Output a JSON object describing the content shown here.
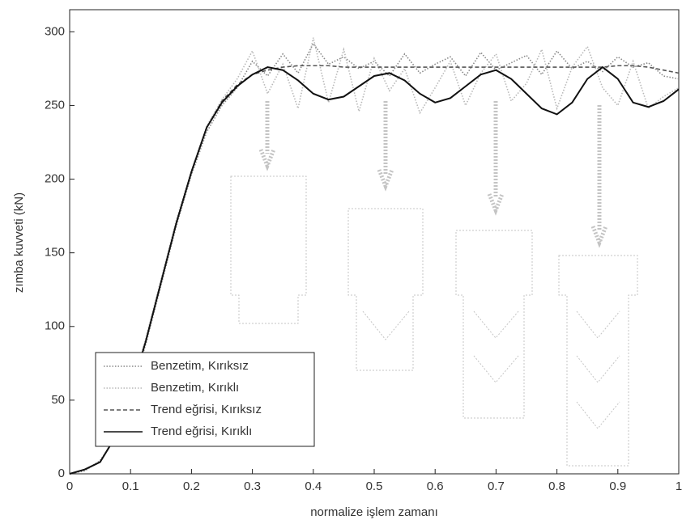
{
  "chart_data": {
    "type": "line",
    "xlabel": "normalize işlem zamanı",
    "ylabel": "zımba kuvveti (kN)",
    "x": [
      0,
      0.025,
      0.05,
      0.075,
      0.1,
      0.125,
      0.15,
      0.175,
      0.2,
      0.225,
      0.25,
      0.275,
      0.3,
      0.325,
      0.35,
      0.375,
      0.4,
      0.425,
      0.45,
      0.475,
      0.5,
      0.525,
      0.55,
      0.575,
      0.6,
      0.625,
      0.65,
      0.675,
      0.7,
      0.725,
      0.75,
      0.775,
      0.8,
      0.825,
      0.85,
      0.875,
      0.9,
      0.925,
      0.95,
      0.975,
      1
    ],
    "series": [
      {
        "name": "Benzetim, Kırıksız",
        "color": "#888888",
        "dash": "dotted",
        "values": [
          0,
          2,
          9,
          24,
          54,
          88,
          128,
          168,
          203,
          232,
          250,
          262,
          280,
          270,
          285,
          272,
          292,
          278,
          283,
          275,
          280,
          270,
          285,
          272,
          278,
          283,
          270,
          286,
          274,
          279,
          284,
          271,
          287,
          275,
          280,
          273,
          283,
          276,
          279,
          270,
          268
        ]
      },
      {
        "name": "Benzetim, Kırıklı",
        "color": "#b8b8b8",
        "dash": "dotted",
        "values": [
          0,
          3,
          8,
          26,
          56,
          92,
          132,
          172,
          206,
          236,
          254,
          268,
          287,
          258,
          278,
          248,
          296,
          252,
          288,
          246,
          282,
          260,
          275,
          245,
          262,
          280,
          250,
          272,
          285,
          253,
          265,
          288,
          248,
          276,
          290,
          262,
          250,
          280,
          248,
          256,
          262
        ]
      },
      {
        "name": "Trend eğrisi, Kırıksız",
        "color": "#555555",
        "dash": "dashed",
        "values": [
          0,
          3,
          8,
          25,
          55,
          90,
          130,
          170,
          205,
          235,
          253,
          264,
          271,
          274,
          276,
          277,
          277,
          277,
          276,
          276,
          276,
          276,
          276,
          276,
          276,
          276,
          276,
          276,
          276,
          276,
          276,
          276,
          276,
          276,
          276,
          276,
          277,
          277,
          276,
          274,
          272
        ]
      },
      {
        "name": "Trend eğrisi, Kırıklı",
        "color": "#111111",
        "dash": "solid",
        "values": [
          0,
          3,
          8,
          25,
          55,
          90,
          130,
          170,
          205,
          235,
          252,
          263,
          271,
          276,
          274,
          267,
          258,
          254,
          256,
          263,
          270,
          272,
          267,
          258,
          252,
          255,
          263,
          271,
          274,
          268,
          258,
          248,
          244,
          252,
          268,
          276,
          268,
          252,
          249,
          253,
          261
        ]
      }
    ],
    "xlim": [
      0,
      1
    ],
    "xticks": [
      0,
      0.1,
      0.2,
      0.3,
      0.4,
      0.5,
      0.6,
      0.7,
      0.8,
      0.9,
      1
    ],
    "ylim": [
      0,
      315
    ],
    "yticks": [
      0,
      50,
      100,
      150,
      200,
      250,
      300
    ],
    "legend": "lower-left"
  }
}
